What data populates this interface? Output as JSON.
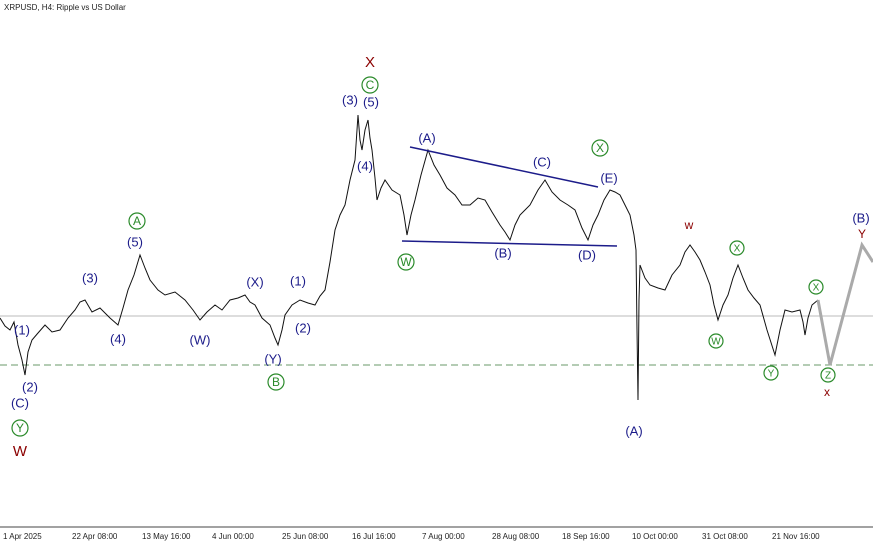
{
  "header": {
    "title": "XRPUSD, H4:  Ripple vs US Dollar"
  },
  "x_axis": {
    "labels": [
      "1 Apr 2025",
      "22 Apr 08:00",
      "13 May 16:00",
      "4 Jun 00:00",
      "25 Jun 08:00",
      "16 Jul 16:00",
      "7 Aug 00:00",
      "28 Aug 08:00",
      "18 Sep 16:00",
      "10 Oct 00:00",
      "31 Oct 08:00",
      "21 Nov 16:00"
    ]
  },
  "wave_labels": [
    "W",
    "Y",
    "(C)",
    "(2)",
    "(1)",
    "(3)",
    "(4)",
    "A",
    "(5)",
    "(W)",
    "(X)",
    "(Y)",
    "B",
    "(1)",
    "(2)",
    "(3)",
    "(5)",
    "C",
    "X",
    "(4)",
    "(A)",
    "(C)",
    "X",
    "(E)",
    "W",
    "(B)",
    "(D)",
    "(A)",
    "w",
    "X",
    "W",
    "Y",
    "X",
    "Z",
    "x",
    "(B)",
    "Y"
  ]
}
